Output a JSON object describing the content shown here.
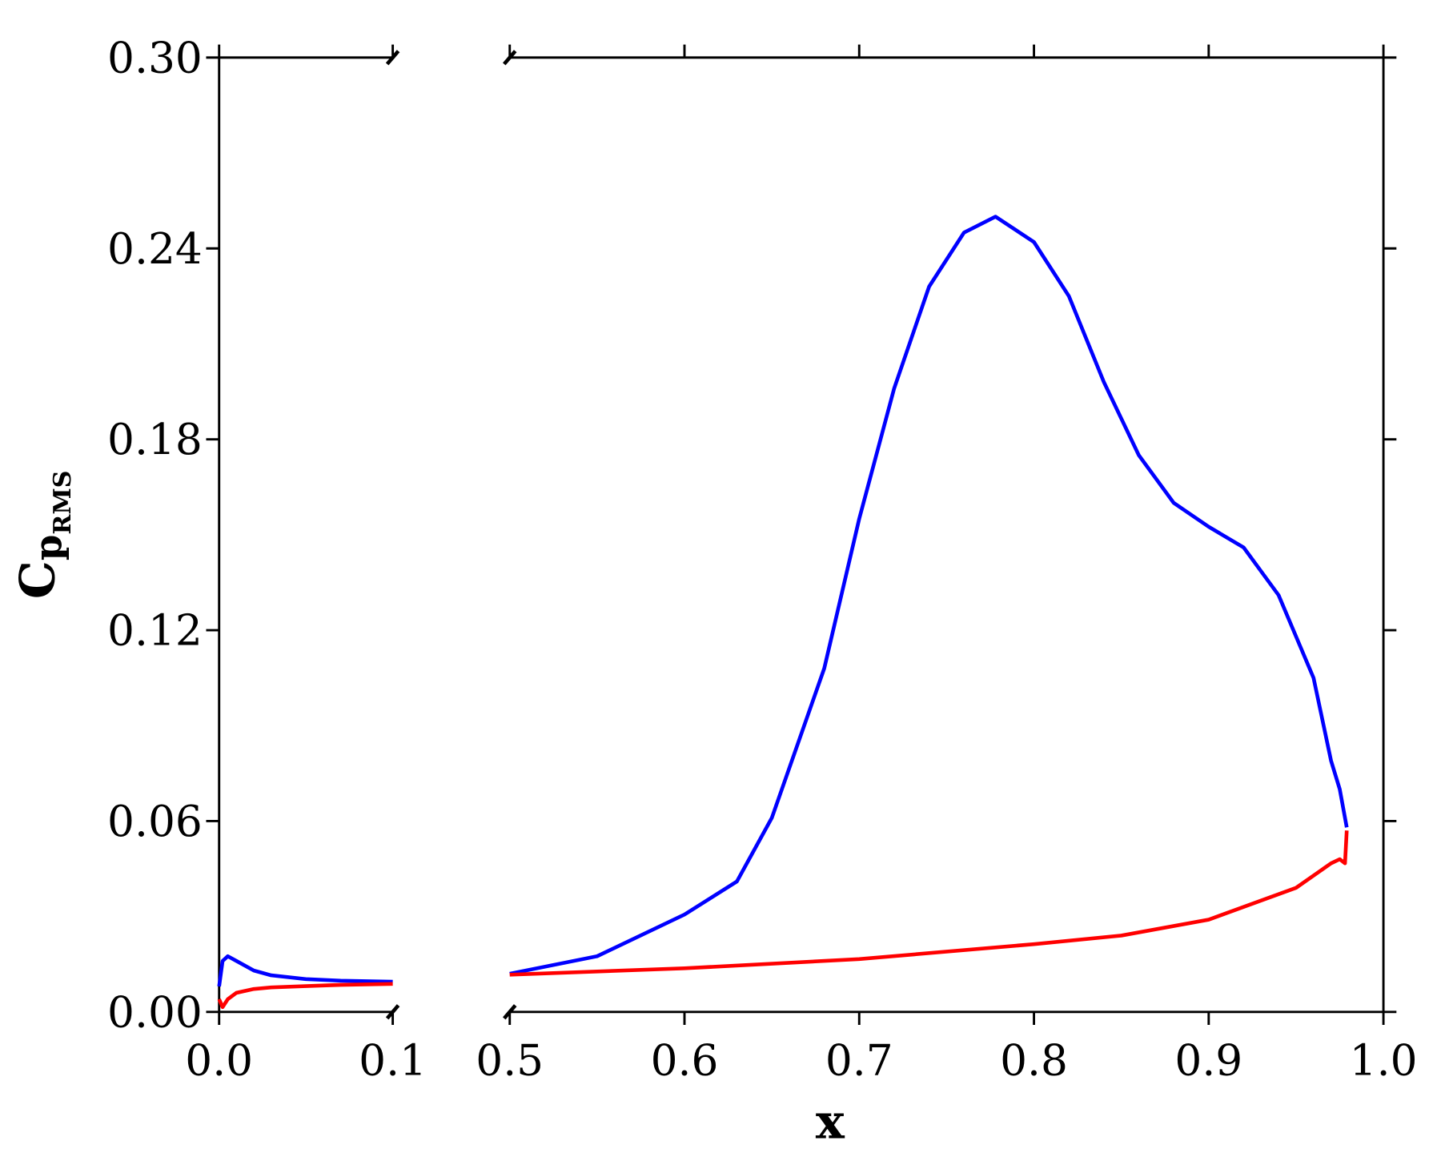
{
  "chart_data": [
    {
      "type": "line",
      "y_label": {
        "base": "C",
        "sub": "p",
        "subsub": "RMS"
      },
      "xlim": [
        0,
        0.1
      ],
      "xticks": [
        {
          "value": 0,
          "label": "0.0"
        },
        0.1
      ],
      "ylim": [
        0,
        0.3
      ],
      "yticks": [
        {
          "value": 0,
          "label": "0.00"
        },
        0.06,
        0.12,
        0.18,
        0.24,
        {
          "value": 0.3,
          "label": "0.30"
        }
      ],
      "series": [
        {
          "color": "#0000ff",
          "x": [
            0,
            0.002,
            0.005,
            0.01,
            0.02,
            0.03,
            0.05,
            0.07,
            0.1
          ],
          "values": [
            0.008,
            0.016,
            0.0175,
            0.016,
            0.013,
            0.0115,
            0.0103,
            0.0098,
            0.0095
          ]
        },
        {
          "color": "#ff0000",
          "x": [
            0,
            0.002,
            0.005,
            0.01,
            0.02,
            0.03,
            0.05,
            0.07,
            0.1
          ],
          "values": [
            0.004,
            0.0015,
            0.004,
            0.006,
            0.0072,
            0.0077,
            0.0081,
            0.0085,
            0.0088
          ]
        }
      ]
    },
    {
      "type": "line",
      "x_label": "x",
      "xlim": [
        0.5,
        1
      ],
      "xticks": [
        0.5,
        0.6,
        0.7,
        0.8,
        0.9,
        {
          "value": 1,
          "label": "1.0"
        }
      ],
      "ylim": [
        0,
        0.3
      ],
      "yticks": [
        0,
        0.06,
        0.12,
        0.18,
        0.24,
        0.3
      ],
      "series": [
        {
          "color": "#0000ff",
          "x": [
            0.5,
            0.55,
            0.6,
            0.63,
            0.65,
            0.68,
            0.7,
            0.72,
            0.74,
            0.76,
            0.778,
            0.8,
            0.82,
            0.84,
            0.86,
            0.88,
            0.9,
            0.92,
            0.94,
            0.96,
            0.97,
            0.975,
            0.979
          ],
          "values": [
            0.012,
            0.0175,
            0.0306,
            0.041,
            0.061,
            0.108,
            0.155,
            0.196,
            0.228,
            0.245,
            0.25,
            0.242,
            0.225,
            0.198,
            0.175,
            0.16,
            0.1525,
            0.146,
            0.131,
            0.105,
            0.079,
            0.07,
            0.058
          ]
        },
        {
          "color": "#ff0000",
          "x": [
            0.5,
            0.6,
            0.7,
            0.8,
            0.85,
            0.9,
            0.95,
            0.97,
            0.975,
            0.978,
            0.979
          ],
          "values": [
            0.0117,
            0.0137,
            0.0166,
            0.0213,
            0.024,
            0.029,
            0.039,
            0.0467,
            0.048,
            0.0467,
            0.057
          ]
        }
      ]
    }
  ]
}
